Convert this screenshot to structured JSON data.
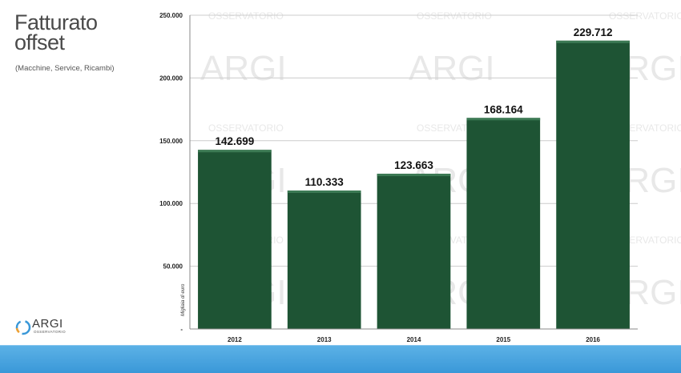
{
  "header": {
    "title_line1": "Fatturato",
    "title_line2": "offset",
    "subtitle": "(Macchine, Service, Ricambi)"
  },
  "logo": {
    "text": "ARGI",
    "sub": "OSSERVATORIO"
  },
  "watermark": {
    "brand": "ARGI",
    "caption": "OSSERVATORIO"
  },
  "colors": {
    "bar": "#1e5434",
    "bar_highlight": "#3c7a54",
    "grid": "#cccccc",
    "footer": "#3a98d8"
  },
  "chart_data": {
    "type": "bar",
    "title": "",
    "xlabel": "",
    "ylabel": "Migliaia di euro",
    "categories": [
      "2012",
      "2013",
      "2014",
      "2015",
      "2016"
    ],
    "values": [
      142699,
      110333,
      123663,
      168164,
      229712
    ],
    "value_labels": [
      "142.699",
      "110.333",
      "123.663",
      "168.164",
      "229.712"
    ],
    "yticks": [
      0,
      50000,
      100000,
      150000,
      200000,
      250000
    ],
    "ytick_labels": [
      "-",
      "50.000",
      "100.000",
      "150.000",
      "200.000",
      "250.000"
    ],
    "ylim": [
      0,
      250000
    ],
    "grid": true,
    "legend": "none"
  }
}
